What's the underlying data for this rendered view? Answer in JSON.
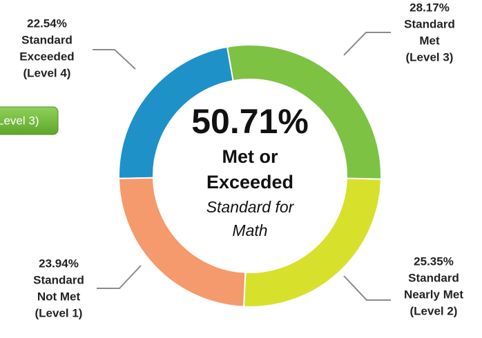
{
  "chart_data": {
    "type": "donut",
    "center_text": {
      "headline": "50.71%",
      "lines_bold": [
        "Met or",
        "Exceeded"
      ],
      "lines_italic": [
        "Standard for",
        "Math"
      ]
    },
    "categories": [
      [
        "Standard",
        "Met",
        "(Level 3)"
      ],
      [
        "Standard",
        "Nearly Met",
        "(Level 2)"
      ],
      [
        "Standard",
        "Not Met",
        "(Level 1)"
      ],
      [
        "Standard",
        "Exceeded",
        "(Level 4)"
      ]
    ],
    "values": [
      28.17,
      25.35,
      23.94,
      22.54
    ],
    "value_labels": [
      "28.17%",
      "25.35%",
      "23.94%",
      "22.54%"
    ],
    "colors": [
      "#7dc243",
      "#d7e12c",
      "#f59a6c",
      "#1f91c9"
    ]
  },
  "side_button": {
    "label": "Level 3)"
  }
}
